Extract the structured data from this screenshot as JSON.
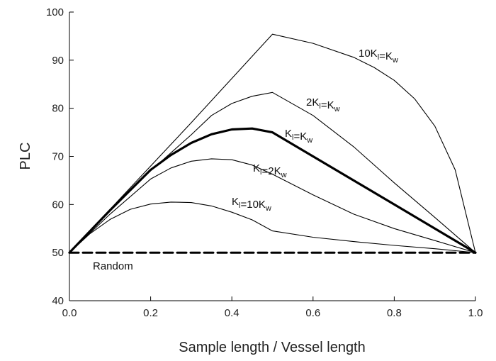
{
  "chart_data": {
    "type": "line",
    "title": "",
    "xlabel": "Sample length / Vessel length",
    "ylabel": "PLC",
    "xlim": [
      0.0,
      1.0
    ],
    "ylim": [
      40,
      100
    ],
    "x_ticks": [
      "0.0",
      "0.2",
      "0.4",
      "0.6",
      "0.8",
      "1.0"
    ],
    "y_ticks": [
      "40",
      "50",
      "60",
      "70",
      "80",
      "90",
      "100"
    ],
    "grid": false,
    "legend": "none (inline labels)",
    "series": [
      {
        "name": "10Kl=Kw",
        "label_main": [
          "10K",
          "=K"
        ],
        "label_sub": [
          "l",
          "w"
        ],
        "style": "thin",
        "x": [
          0.0,
          0.1,
          0.2,
          0.3,
          0.4,
          0.5,
          0.6,
          0.7,
          0.75,
          0.8,
          0.85,
          0.9,
          0.95,
          1.0
        ],
        "y": [
          50,
          59,
          68,
          77,
          86.2,
          95.4,
          93.5,
          90.6,
          88.5,
          85.8,
          82,
          76.3,
          67.2,
          50
        ]
      },
      {
        "name": "2Kl=Kw",
        "label_main": [
          "2K",
          "=K"
        ],
        "label_sub": [
          "l",
          "w"
        ],
        "style": "thin",
        "x": [
          0.0,
          0.1,
          0.2,
          0.3,
          0.35,
          0.4,
          0.45,
          0.5,
          0.6,
          0.7,
          0.8,
          0.9,
          1.0
        ],
        "y": [
          50,
          59,
          67,
          74.5,
          78.5,
          81,
          82.5,
          83.3,
          78.5,
          72,
          64.5,
          57.3,
          50
        ]
      },
      {
        "name": "Kl=Kw",
        "label_main": [
          "K",
          "=K"
        ],
        "label_sub": [
          "l",
          "w"
        ],
        "style": "bold",
        "x": [
          0.0,
          0.1,
          0.2,
          0.25,
          0.3,
          0.35,
          0.4,
          0.45,
          0.5,
          0.6,
          0.7,
          0.8,
          0.9,
          1.0
        ],
        "y": [
          50,
          58.8,
          67.2,
          70.3,
          72.8,
          74.6,
          75.6,
          75.8,
          75,
          70,
          65,
          60,
          55,
          50
        ]
      },
      {
        "name": "Kl=2Kw",
        "label_main": [
          "K",
          "=2K"
        ],
        "label_sub": [
          "l",
          "w"
        ],
        "style": "thin",
        "x": [
          0.0,
          0.1,
          0.2,
          0.25,
          0.3,
          0.35,
          0.4,
          0.45,
          0.5,
          0.6,
          0.7,
          0.8,
          0.9,
          1.0
        ],
        "y": [
          50,
          58,
          65.3,
          67.6,
          69,
          69.5,
          69.3,
          68.2,
          66.3,
          62,
          58,
          55,
          52.5,
          50
        ]
      },
      {
        "name": "Kl=10Kw",
        "label_main": [
          "K",
          "=10K"
        ],
        "label_sub": [
          "l",
          "w"
        ],
        "style": "thin",
        "x": [
          0.0,
          0.05,
          0.1,
          0.15,
          0.2,
          0.25,
          0.3,
          0.35,
          0.4,
          0.45,
          0.5,
          0.6,
          0.7,
          0.8,
          0.9,
          1.0
        ],
        "y": [
          50,
          53.9,
          56.9,
          59,
          60.1,
          60.5,
          60.4,
          59.7,
          58.4,
          56.8,
          54.5,
          53.2,
          52.3,
          51.5,
          50.8,
          50
        ]
      },
      {
        "name": "Random",
        "style": "dashed",
        "x": [
          0.0,
          1.0
        ],
        "y": [
          50,
          50
        ]
      }
    ]
  }
}
